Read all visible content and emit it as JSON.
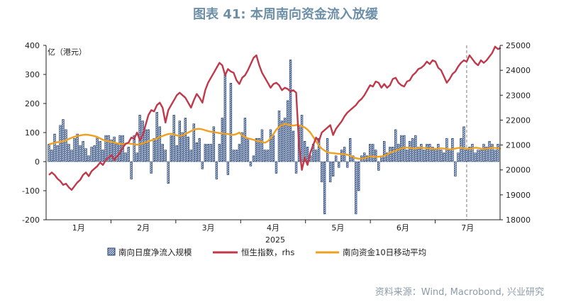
{
  "title": "图表 41: 本周南向资金流入放缓",
  "source": "资料来源：Wind, Macrobond, 兴业研究",
  "chart_data": {
    "type": "bar",
    "year_label": "2025",
    "left_axis": {
      "unit": "亿（港元）",
      "ylim": [
        -200,
        400
      ],
      "ticks": [
        -200,
        -100,
        0,
        100,
        200,
        300,
        400
      ]
    },
    "right_axis": {
      "ylim": [
        18000,
        25000
      ],
      "ticks": [
        18000,
        19000,
        20000,
        21000,
        22000,
        23000,
        24000,
        25000
      ]
    },
    "months": [
      "1月",
      "2月",
      "3月",
      "4月",
      "5月",
      "6月",
      "7月"
    ],
    "legend": [
      "南向日度净流入规模",
      "恒生指数，rhs",
      "南向资金10日移动平均"
    ],
    "colors": {
      "bar_fill": "#c9d3e6",
      "bar_stroke": "#1f3d6e",
      "hsi": "#c0394b",
      "ma10": "#f0a020"
    },
    "series": [
      {
        "name": "南向日度净流入规模",
        "type": "bar",
        "values": [
          60,
          40,
          95,
          55,
          125,
          145,
          110,
          60,
          40,
          80,
          95,
          55,
          70,
          45,
          20,
          50,
          55,
          85,
          70,
          40,
          90,
          90,
          75,
          85,
          60,
          90,
          90,
          30,
          50,
          -60,
          90,
          30,
          160,
          140,
          110,
          110,
          -40,
          80,
          170,
          120,
          60,
          40,
          -75,
          90,
          160,
          55,
          140,
          100,
          150,
          85,
          40,
          130,
          65,
          80,
          -25,
          60,
          60,
          60,
          120,
          -60,
          60,
          150,
          300,
          -45,
          270,
          40,
          40,
          60,
          100,
          150,
          80,
          -15,
          20,
          80,
          80,
          110,
          40,
          40,
          110,
          90,
          -40,
          175,
          140,
          150,
          210,
          350,
          105,
          -40,
          125,
          160,
          70,
          50,
          20,
          60,
          40,
          80,
          -70,
          -180,
          80,
          -70,
          -50,
          20,
          -20,
          40,
          50,
          -20,
          80,
          20,
          -180,
          -100,
          20,
          30,
          20,
          60,
          60,
          40,
          -30,
          20,
          70,
          30,
          50,
          50,
          110,
          60,
          90,
          90,
          40,
          70,
          80,
          90,
          50,
          60,
          40,
          60,
          60,
          50,
          40,
          60,
          40,
          30,
          80,
          40,
          80,
          -50,
          30,
          80,
          120,
          40,
          50,
          60,
          30,
          40,
          40,
          60,
          50,
          70,
          60,
          40,
          60
        ]
      },
      {
        "name": "恒生指数，rhs",
        "type": "line",
        "values": [
          19800,
          19900,
          19800,
          19650,
          19550,
          19400,
          19450,
          19300,
          19200,
          19350,
          19500,
          19600,
          19800,
          19900,
          19750,
          19950,
          20050,
          20150,
          20300,
          20200,
          20400,
          20500,
          20600,
          20400,
          20550,
          20700,
          20900,
          21050,
          21100,
          21300,
          21250,
          21500,
          21200,
          21400,
          21800,
          22200,
          22400,
          22350,
          22600,
          22700,
          22500,
          21900,
          22400,
          22600,
          22800,
          23000,
          23100,
          23000,
          22900,
          22700,
          22500,
          22800,
          23050,
          22900,
          22700,
          23200,
          23500,
          23700,
          23900,
          24100,
          24300,
          24200,
          23800,
          24050,
          23950,
          23900,
          23600,
          23450,
          23700,
          23800,
          24000,
          24250,
          24500,
          24600,
          24200,
          23900,
          23700,
          23500,
          23300,
          23450,
          23500,
          23400,
          23200,
          23300,
          23250,
          23150,
          23200,
          23100,
          21000,
          20000,
          20500,
          20200,
          20700,
          21000,
          21300,
          21150,
          21500,
          21600,
          21700,
          21800,
          21400,
          21650,
          21800,
          21950,
          22150,
          22300,
          22400,
          22500,
          22600,
          22750,
          22850,
          23000,
          23200,
          23400,
          23350,
          23550,
          23500,
          23300,
          23450,
          23300,
          23400,
          23650,
          23700,
          23500,
          23400,
          23350,
          23550,
          23600,
          23800,
          23900,
          24050,
          24100,
          24200,
          24350,
          24250,
          24400,
          24350,
          24100,
          24000,
          23750,
          23500,
          23650,
          23850,
          23950,
          24150,
          24300,
          24400,
          24350,
          24600,
          24450,
          24300,
          24200,
          24400,
          24300,
          24400,
          24550,
          24700,
          24950,
          24850,
          24900
        ]
      },
      {
        "name": "南向资金10日移动平均",
        "type": "line",
        "values": [
          60,
          62,
          65,
          67,
          68,
          70,
          73,
          78,
          82,
          86,
          88,
          90,
          92,
          93,
          92,
          90,
          88,
          85,
          80,
          75,
          72,
          70,
          68,
          66,
          63,
          61,
          60,
          62,
          63,
          61,
          60,
          58,
          60,
          63,
          66,
          70,
          73,
          75,
          80,
          85,
          88,
          92,
          95,
          96,
          94,
          90,
          88,
          90,
          95,
          100,
          105,
          110,
          112,
          113,
          111,
          108,
          105,
          103,
          102,
          100,
          98,
          97,
          96,
          95,
          93,
          92,
          95,
          100,
          90,
          85,
          80,
          78,
          75,
          72,
          70,
          68,
          65,
          70,
          80,
          95,
          110,
          120,
          125,
          130,
          128,
          125,
          124,
          126,
          125,
          122,
          118,
          110,
          100,
          85,
          70,
          55,
          45,
          38,
          32,
          30,
          29,
          28,
          27,
          26,
          25,
          24,
          20,
          16,
          12,
          10,
          10,
          12,
          15,
          18,
          18,
          16,
          17,
          18,
          20,
          25,
          30,
          35,
          38,
          42,
          45,
          48,
          48,
          47,
          46,
          45,
          47,
          48,
          47,
          46,
          45,
          44,
          44,
          45,
          46,
          45,
          44,
          42,
          43,
          45,
          47,
          48,
          46,
          45,
          44,
          46,
          48,
          47,
          45,
          43,
          45,
          46,
          48,
          47,
          46,
          45
        ]
      }
    ]
  }
}
